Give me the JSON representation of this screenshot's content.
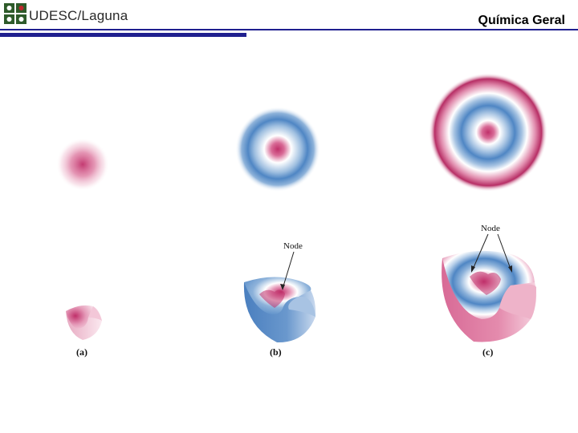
{
  "header": {
    "logo_text": "UDESC/Laguna",
    "course_title": "Química Geral"
  },
  "figure": {
    "labels": [
      "(a)",
      "(b)",
      "(c)"
    ],
    "node_label_b": "Node",
    "node_label_c": "Node"
  },
  "colors": {
    "brand_green": "#2e5b2a",
    "brand_red": "#c0282d",
    "rule_blue": "#1f1f8f",
    "orbital_pink": "#c0306a",
    "orbital_blue": "#4f86c4"
  },
  "icons": {
    "logo": "udesc-logo-icon"
  }
}
